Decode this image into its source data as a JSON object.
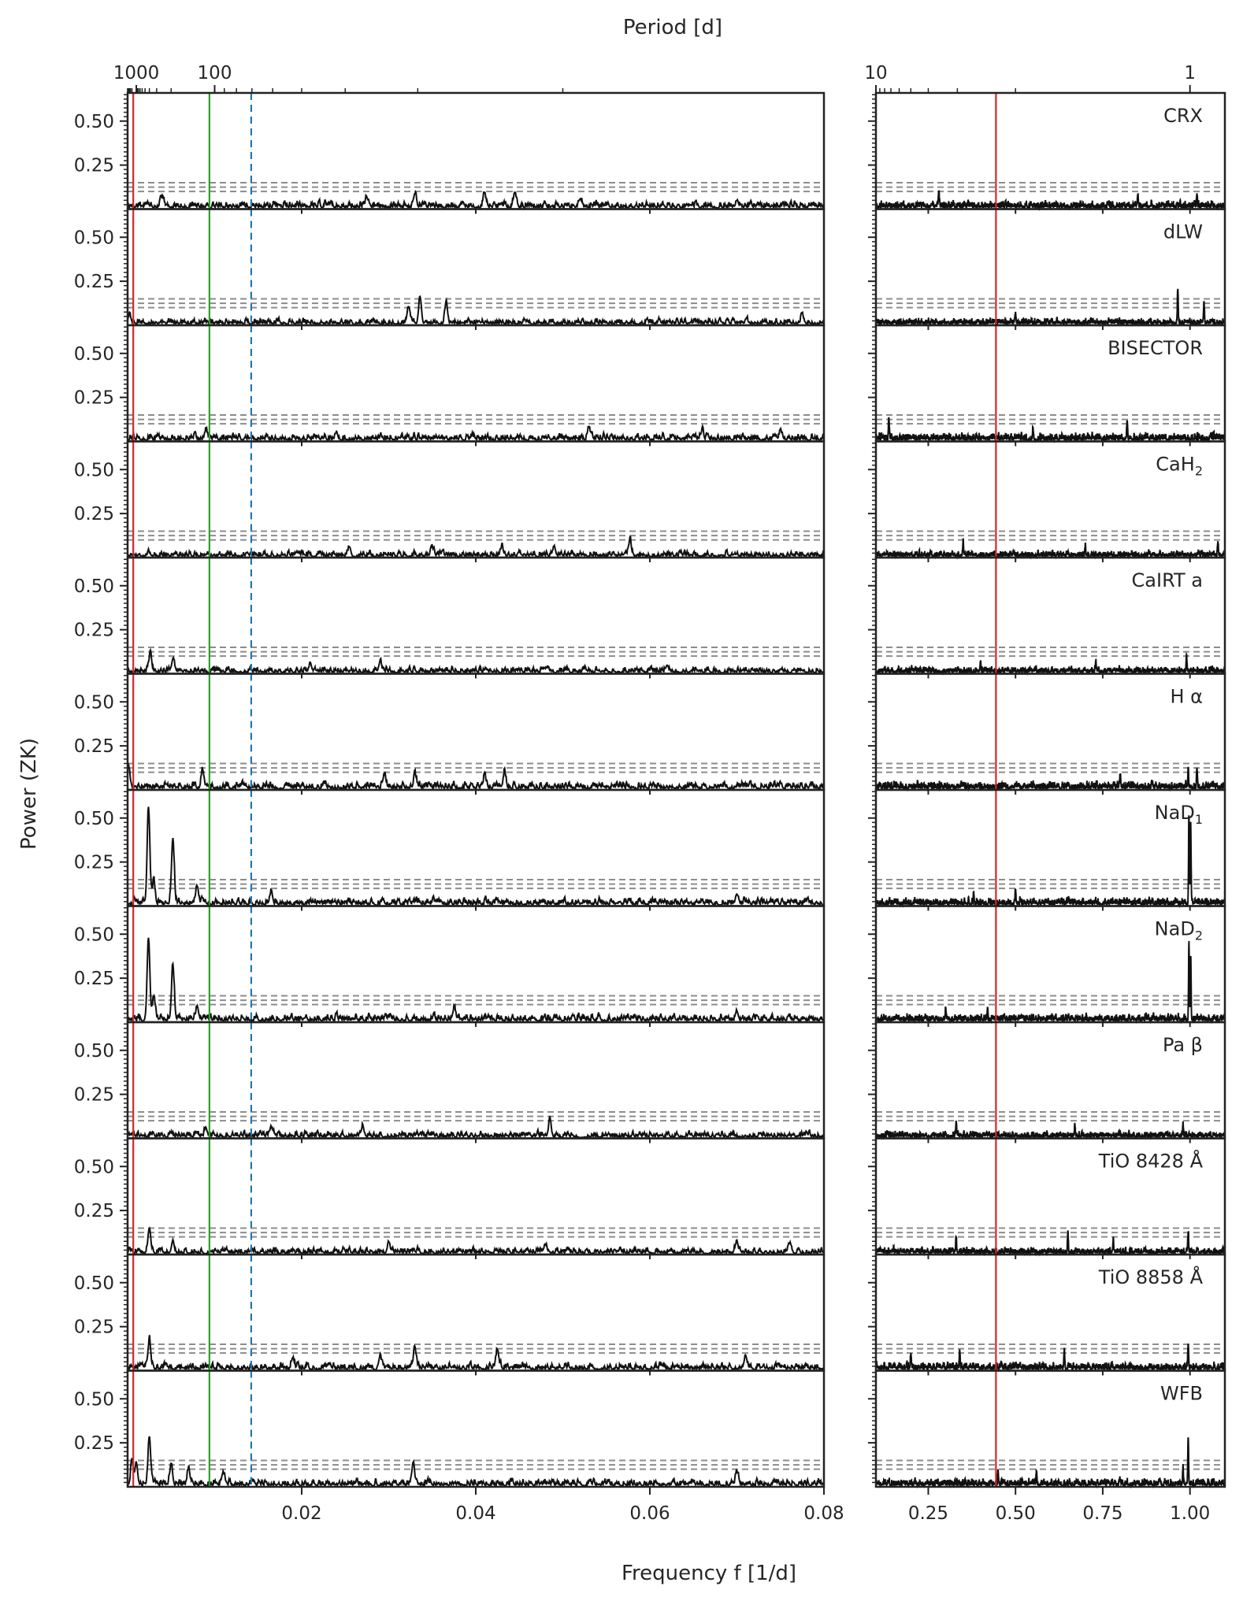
{
  "chart_data": {
    "type": "line",
    "top_axis_label": "Period [d]",
    "x_axis_label": "Frequency f [1/d]",
    "y_axis_label": "Power (ZK)",
    "y_tick_labels": [
      "0.50",
      "0.25"
    ],
    "y_ticks": [
      0.5,
      0.25
    ],
    "ylim": [
      0,
      0.66
    ],
    "fap_levels": [
      0.1,
      0.125,
      0.15
    ],
    "grid": false,
    "legend": "none",
    "left_column": {
      "xlim": [
        0,
        0.08
      ],
      "x_ticks": [
        0.02,
        0.04,
        0.06,
        0.08
      ],
      "x_tick_labels": [
        "0.02",
        "0.04",
        "0.06",
        "0.08"
      ],
      "period_ticks": [
        1000,
        100
      ],
      "period_tick_labels": [
        "1000",
        "100"
      ],
      "vlines": [
        {
          "x": 0.00065,
          "color": "#d62728",
          "style": "solid"
        },
        {
          "x": 0.0094,
          "color": "#2ca02c",
          "style": "solid"
        },
        {
          "x": 0.0142,
          "color": "#1f77b4",
          "style": "dashed"
        }
      ]
    },
    "right_column": {
      "xlim": [
        0.1,
        1.1
      ],
      "x_ticks": [
        0.25,
        0.5,
        0.75,
        1.0
      ],
      "x_tick_labels": [
        "0.25",
        "0.50",
        "0.75",
        "1.00"
      ],
      "period_ticks": [
        10,
        1
      ],
      "period_tick_labels": [
        "10",
        "1"
      ],
      "vlines": [
        {
          "x": 0.444,
          "color": "#d62728",
          "style": "solid"
        }
      ]
    },
    "panels": [
      {
        "name": "CRX",
        "label": "CRX",
        "noise": 0.03,
        "peaks_left": [
          [
            0.033,
            0.08
          ],
          [
            0.041,
            0.07
          ],
          [
            0.0445,
            0.08
          ],
          [
            0.004,
            0.05
          ],
          [
            0.0275,
            0.05
          ],
          [
            0.052,
            0.05
          ],
          [
            0.07,
            0.04
          ]
        ],
        "peaks_right": [
          [
            0.28,
            0.09
          ],
          [
            0.85,
            0.07
          ],
          [
            1.02,
            0.08
          ]
        ]
      },
      {
        "name": "dLW",
        "label": "dLW",
        "noise": 0.025,
        "peaks_left": [
          [
            0.0336,
            0.15
          ],
          [
            0.0323,
            0.09
          ],
          [
            0.0366,
            0.12
          ],
          [
            0.0002,
            0.04
          ],
          [
            0.0775,
            0.05
          ]
        ],
        "peaks_right": [
          [
            0.965,
            0.19
          ],
          [
            1.04,
            0.12
          ],
          [
            0.5,
            0.06
          ]
        ]
      },
      {
        "name": "BISECTOR",
        "label": "BISECTOR",
        "noise": 0.03,
        "peaks_left": [
          [
            0.009,
            0.05
          ],
          [
            0.024,
            0.04
          ],
          [
            0.053,
            0.06
          ],
          [
            0.066,
            0.04
          ],
          [
            0.075,
            0.04
          ]
        ],
        "peaks_right": [
          [
            0.137,
            0.12
          ],
          [
            0.82,
            0.11
          ],
          [
            0.55,
            0.06
          ]
        ]
      },
      {
        "name": "CaH2",
        "label": "CaH",
        "label_sub": "2",
        "noise": 0.025,
        "peaks_left": [
          [
            0.0255,
            0.05
          ],
          [
            0.043,
            0.05
          ],
          [
            0.049,
            0.05
          ],
          [
            0.0577,
            0.08
          ],
          [
            0.035,
            0.04
          ]
        ],
        "peaks_right": [
          [
            0.35,
            0.09
          ],
          [
            1.08,
            0.08
          ],
          [
            0.7,
            0.05
          ]
        ]
      },
      {
        "name": "CaIRT a",
        "label": "CaIRT a",
        "noise": 0.025,
        "peaks_left": [
          [
            0.0026,
            0.1
          ],
          [
            0.0052,
            0.07
          ],
          [
            0.029,
            0.06
          ],
          [
            0.021,
            0.05
          ],
          [
            0.062,
            0.04
          ]
        ],
        "peaks_right": [
          [
            0.99,
            0.1
          ],
          [
            0.73,
            0.06
          ],
          [
            0.4,
            0.05
          ]
        ]
      },
      {
        "name": "H alpha",
        "label": "H α",
        "noise": 0.03,
        "peaks_left": [
          [
            0.0001,
            0.12
          ],
          [
            0.0086,
            0.1
          ],
          [
            0.0295,
            0.08
          ],
          [
            0.0433,
            0.09
          ],
          [
            0.033,
            0.06
          ],
          [
            0.041,
            0.06
          ]
        ],
        "peaks_right": [
          [
            0.995,
            0.12
          ],
          [
            1.02,
            0.1
          ],
          [
            0.8,
            0.07
          ]
        ]
      },
      {
        "name": "NaD1",
        "label": "NaD",
        "label_sub": "1",
        "noise": 0.03,
        "peaks_left": [
          [
            0.0024,
            0.54
          ],
          [
            0.0052,
            0.38
          ],
          [
            0.003,
            0.12
          ],
          [
            0.008,
            0.09
          ],
          [
            0.0165,
            0.07
          ],
          [
            0.07,
            0.06
          ]
        ],
        "peaks_right": [
          [
            0.997,
            0.5
          ],
          [
            1.002,
            0.44
          ],
          [
            0.5,
            0.07
          ],
          [
            0.38,
            0.06
          ]
        ]
      },
      {
        "name": "NaD2",
        "label": "NaD",
        "label_sub": "2",
        "noise": 0.03,
        "peaks_left": [
          [
            0.0024,
            0.46
          ],
          [
            0.0052,
            0.31
          ],
          [
            0.003,
            0.13
          ],
          [
            0.008,
            0.08
          ],
          [
            0.0375,
            0.07
          ],
          [
            0.07,
            0.05
          ]
        ],
        "peaks_right": [
          [
            0.997,
            0.42
          ],
          [
            1.002,
            0.37
          ],
          [
            0.42,
            0.08
          ],
          [
            0.3,
            0.06
          ]
        ]
      },
      {
        "name": "Pa beta",
        "label": "Pa β",
        "noise": 0.025,
        "peaks_left": [
          [
            0.0485,
            0.09
          ],
          [
            0.027,
            0.06
          ],
          [
            0.0165,
            0.05
          ],
          [
            0.009,
            0.04
          ]
        ],
        "peaks_right": [
          [
            0.33,
            0.08
          ],
          [
            0.67,
            0.07
          ],
          [
            0.98,
            0.06
          ]
        ]
      },
      {
        "name": "TiO 8428",
        "label": "TiO 8428 Å",
        "noise": 0.025,
        "peaks_left": [
          [
            0.0025,
            0.14
          ],
          [
            0.0052,
            0.07
          ],
          [
            0.03,
            0.06
          ],
          [
            0.048,
            0.05
          ],
          [
            0.07,
            0.06
          ],
          [
            0.076,
            0.05
          ]
        ],
        "peaks_right": [
          [
            0.995,
            0.11
          ],
          [
            0.65,
            0.1
          ],
          [
            0.33,
            0.08
          ],
          [
            0.78,
            0.08
          ]
        ]
      },
      {
        "name": "TiO 8858",
        "label": "TiO 8858 Å",
        "noise": 0.03,
        "peaks_left": [
          [
            0.0025,
            0.15
          ],
          [
            0.033,
            0.12
          ],
          [
            0.0425,
            0.1
          ],
          [
            0.029,
            0.07
          ],
          [
            0.071,
            0.08
          ],
          [
            0.019,
            0.06
          ]
        ],
        "peaks_right": [
          [
            0.995,
            0.14
          ],
          [
            0.34,
            0.11
          ],
          [
            0.2,
            0.08
          ],
          [
            0.64,
            0.08
          ]
        ]
      },
      {
        "name": "WFB",
        "label": "WFB",
        "noise": 0.03,
        "peaks_left": [
          [
            0.0025,
            0.27
          ],
          [
            0.0005,
            0.13
          ],
          [
            0.001,
            0.12
          ],
          [
            0.005,
            0.11
          ],
          [
            0.007,
            0.09
          ],
          [
            0.0328,
            0.12
          ],
          [
            0.011,
            0.07
          ],
          [
            0.07,
            0.07
          ]
        ],
        "peaks_right": [
          [
            0.995,
            0.26
          ],
          [
            0.98,
            0.1
          ],
          [
            0.45,
            0.08
          ],
          [
            0.56,
            0.07
          ]
        ]
      }
    ]
  }
}
